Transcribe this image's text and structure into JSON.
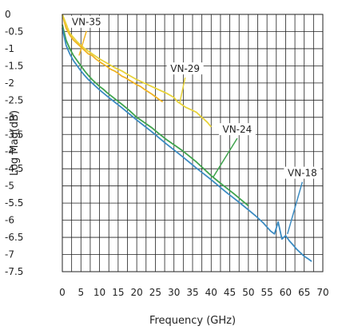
{
  "chart_data": {
    "type": "line",
    "xlabel": "Frequency (GHz)",
    "ylabel": "Log Mag(dB)",
    "xlim": [
      0,
      70
    ],
    "ylim": [
      -7.5,
      0
    ],
    "x_ticks": [
      0,
      5,
      10,
      15,
      20,
      25,
      30,
      35,
      40,
      45,
      50,
      55,
      60,
      65,
      70
    ],
    "x_tick_labels": [
      "0",
      "5",
      "10",
      "15",
      "20",
      "25",
      "30",
      "35",
      "40",
      "45",
      "50",
      "55",
      "60",
      "65",
      "70"
    ],
    "y_ticks": [
      0,
      -0.5,
      -1,
      -1.5,
      -2,
      -2.5,
      -3,
      -3.5,
      -4,
      -4.5,
      -5,
      -5.5,
      -6,
      -6.5,
      -7,
      -7.5
    ],
    "y_tick_labels": [
      "0",
      "-0.5",
      "-1",
      "-1.5",
      "-2",
      "-2.5",
      "-3",
      "-3.5",
      "-4",
      "-4.5",
      "-5",
      "-5.5",
      "-6",
      "-6.5",
      "-7",
      "-7.5"
    ],
    "grid": true,
    "legend": "none",
    "series": [
      {
        "name": "VN-35",
        "color": "#f0b323",
        "label_at": [
          6.5,
          -0.32
        ],
        "leader_to": [
          4.5,
          -1.2
        ],
        "x": [
          0,
          1,
          2,
          3,
          4,
          5,
          6,
          7,
          8,
          9,
          10,
          11,
          12,
          13,
          14,
          15,
          16,
          17,
          18,
          19,
          20,
          21,
          22,
          23,
          24,
          25,
          26,
          27
        ],
        "y": [
          0,
          -0.4,
          -0.6,
          -0.75,
          -0.85,
          -0.95,
          -1.05,
          -1.15,
          -1.2,
          -1.3,
          -1.38,
          -1.45,
          -1.52,
          -1.6,
          -1.65,
          -1.72,
          -1.8,
          -1.85,
          -1.92,
          -1.98,
          -2.05,
          -2.1,
          -2.18,
          -2.25,
          -2.32,
          -2.4,
          -2.48,
          -2.55
        ]
      },
      {
        "name": "VN-29",
        "color": "#e8d33a",
        "label_at": [
          33.0,
          -1.68
        ],
        "leader_to": [
          31.5,
          -2.6
        ],
        "x": [
          0,
          2,
          4,
          6,
          8,
          10,
          12,
          14,
          16,
          18,
          20,
          22,
          24,
          26,
          28,
          30,
          31,
          32,
          33,
          34,
          35,
          36,
          37,
          38,
          39,
          40
        ],
        "y": [
          0,
          -0.55,
          -0.8,
          -1.0,
          -1.15,
          -1.3,
          -1.42,
          -1.55,
          -1.65,
          -1.78,
          -1.9,
          -2.0,
          -2.1,
          -2.2,
          -2.3,
          -2.42,
          -2.55,
          -2.62,
          -2.7,
          -2.75,
          -2.8,
          -2.85,
          -2.95,
          -3.05,
          -3.15,
          -3.28
        ]
      },
      {
        "name": "VN-24",
        "color": "#3fa34d",
        "label_at": [
          47.0,
          -3.45
        ],
        "leader_to": [
          40.5,
          -4.75
        ],
        "x": [
          0,
          1,
          2,
          3,
          4,
          5,
          6,
          7,
          8,
          9,
          10,
          11,
          12,
          14,
          16,
          18,
          20,
          22,
          24,
          26,
          28,
          30,
          32,
          34,
          36,
          38,
          40,
          42,
          44,
          46,
          48,
          50
        ],
        "y": [
          -0.3,
          -0.75,
          -1.0,
          -1.2,
          -1.35,
          -1.5,
          -1.65,
          -1.78,
          -1.9,
          -2.0,
          -2.1,
          -2.18,
          -2.28,
          -2.45,
          -2.62,
          -2.8,
          -3.0,
          -3.15,
          -3.3,
          -3.48,
          -3.65,
          -3.8,
          -3.95,
          -4.12,
          -4.3,
          -4.5,
          -4.7,
          -4.88,
          -5.05,
          -5.22,
          -5.4,
          -5.58
        ]
      },
      {
        "name": "VN-18",
        "color": "#3b8bc2",
        "label_at": [
          64.5,
          -4.72
        ],
        "leader_to": [
          60.5,
          -6.4
        ],
        "x": [
          0,
          1,
          2,
          3,
          4,
          5,
          6,
          7,
          8,
          9,
          10,
          12,
          14,
          16,
          18,
          20,
          22,
          24,
          26,
          28,
          30,
          32,
          34,
          36,
          38,
          40,
          42,
          44,
          46,
          48,
          50,
          52,
          54,
          55,
          56,
          57,
          58,
          59,
          60,
          61,
          62,
          63,
          64,
          65,
          66,
          67
        ],
        "y": [
          -0.4,
          -0.9,
          -1.15,
          -1.35,
          -1.5,
          -1.65,
          -1.78,
          -1.9,
          -2.0,
          -2.1,
          -2.2,
          -2.38,
          -2.55,
          -2.72,
          -2.9,
          -3.08,
          -3.25,
          -3.42,
          -3.6,
          -3.78,
          -3.95,
          -4.12,
          -4.3,
          -4.48,
          -4.65,
          -4.82,
          -5.0,
          -5.18,
          -5.35,
          -5.52,
          -5.7,
          -5.88,
          -6.08,
          -6.2,
          -6.32,
          -6.4,
          -6.05,
          -6.55,
          -6.45,
          -6.6,
          -6.72,
          -6.85,
          -6.95,
          -7.05,
          -7.12,
          -7.2
        ]
      }
    ]
  }
}
